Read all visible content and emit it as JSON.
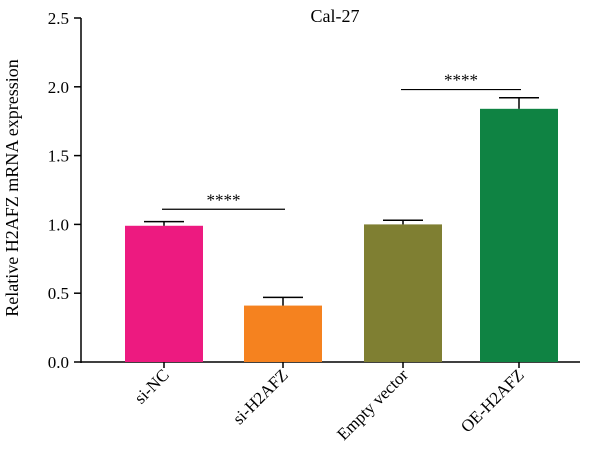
{
  "chart_data": {
    "type": "bar",
    "title": "Cal-27",
    "ylabel": "Relative H2AFZ mRNA expression",
    "xlabel": "",
    "ylim": [
      0,
      2.5
    ],
    "yticks": [
      "0.0",
      "0.5",
      "1.0",
      "1.5",
      "2.0",
      "2.5"
    ],
    "categories": [
      "si-NC",
      "si-H2AFZ",
      "Empty vector",
      "OE-H2AFZ"
    ],
    "values": [
      0.99,
      0.41,
      1.0,
      1.84
    ],
    "errors": [
      0.03,
      0.06,
      0.03,
      0.08
    ],
    "colors": [
      "#ed1a80",
      "#f5821f",
      "#7f7f32",
      "#0f8343"
    ],
    "significance": [
      {
        "from": 0,
        "to": 1,
        "label": "****",
        "y": 1.11
      },
      {
        "from": 2,
        "to": 3,
        "label": "****",
        "y": 1.98
      }
    ]
  }
}
